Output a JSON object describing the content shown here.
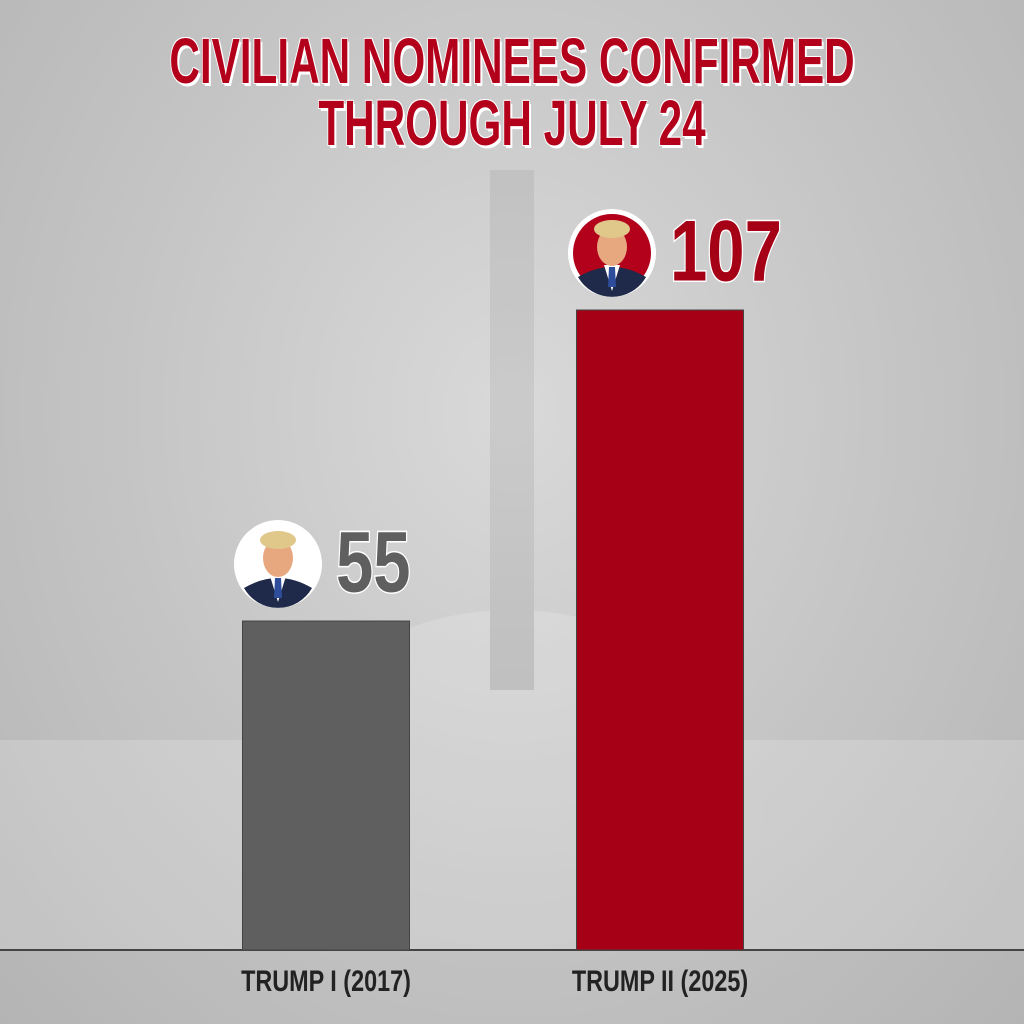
{
  "chart_data": {
    "type": "bar",
    "title": "CIVILIAN NOMINEES CONFIRMED THROUGH JULY 24",
    "categories": [
      "TRUMP I (2017)",
      "TRUMP II (2025)"
    ],
    "values": [
      55,
      107
    ],
    "colors": [
      "#5f5f5f",
      "#a50015"
    ]
  }
}
